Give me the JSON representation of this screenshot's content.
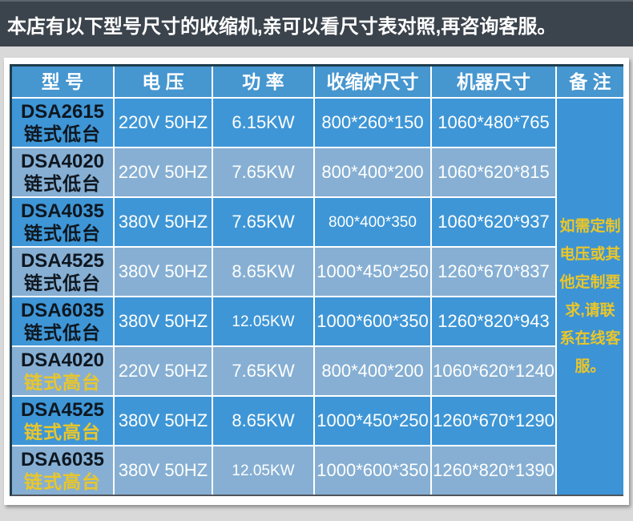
{
  "banner": {
    "text": "本店有以下型号尺寸的收缩机,亲可以看尺寸表对照,再咨询客服。"
  },
  "table": {
    "headers": [
      "型 号",
      "电 压",
      "功 率",
      "收缩炉尺寸",
      "机器尺寸",
      "备 注"
    ],
    "rows": [
      {
        "model": "DSA2615",
        "variant": "链式低台",
        "variant_highlight": false,
        "voltage": "220V 50HZ",
        "power": "6.15KW",
        "power_small": false,
        "furnace_size": "800*260*150",
        "furnace_small": false,
        "machine_size": "1060*480*765"
      },
      {
        "model": "DSA4020",
        "variant": "链式低台",
        "variant_highlight": false,
        "voltage": "220V 50HZ",
        "power": "7.65KW",
        "power_small": false,
        "furnace_size": "800*400*200",
        "furnace_small": false,
        "machine_size": "1060*620*815"
      },
      {
        "model": "DSA4035",
        "variant": "链式低台",
        "variant_highlight": false,
        "voltage": "380V 50HZ",
        "power": "7.65KW",
        "power_small": false,
        "furnace_size": "800*400*350",
        "furnace_small": true,
        "machine_size": "1060*620*937"
      },
      {
        "model": "DSA4525",
        "variant": "链式低台",
        "variant_highlight": false,
        "voltage": "380V 50HZ",
        "power": "8.65KW",
        "power_small": false,
        "furnace_size": "1000*450*250",
        "furnace_small": false,
        "machine_size": "1260*670*837"
      },
      {
        "model": "DSA6035",
        "variant": "链式低台",
        "variant_highlight": false,
        "voltage": "380V 50HZ",
        "power": "12.05KW",
        "power_small": true,
        "furnace_size": "1000*600*350",
        "furnace_small": false,
        "machine_size": "1260*820*943"
      },
      {
        "model": "DSA4020",
        "variant": "链式高台",
        "variant_highlight": true,
        "voltage": "220V 50HZ",
        "power": "7.65KW",
        "power_small": false,
        "furnace_size": "800*400*200",
        "furnace_small": false,
        "machine_size": "1060*620*1240"
      },
      {
        "model": "DSA4525",
        "variant": "链式高台",
        "variant_highlight": true,
        "voltage": "380V 50HZ",
        "power": "8.65KW",
        "power_small": false,
        "furnace_size": "1000*450*250",
        "furnace_small": false,
        "machine_size": "1260*670*1290"
      },
      {
        "model": "DSA6035",
        "variant": "链式高台",
        "variant_highlight": true,
        "voltage": "380V 50HZ",
        "power": "12.05KW",
        "power_small": true,
        "furnace_size": "1000*600*350",
        "furnace_small": false,
        "machine_size": "1260*820*1390"
      }
    ],
    "remark": "如需定制电压或其他定制要求,请联系在线客服。"
  },
  "colors": {
    "banner_bg": "#3b434c",
    "header_bg": "#4696cf",
    "row_dark": "#3e96d6",
    "row_light": "#86afd3",
    "remark_bg": "#3c93d6",
    "accent_yellow": "#eac62a",
    "model_text": "#0e161f",
    "page_bg": "#d9d9d9",
    "table_border": "#1d3c4d"
  }
}
